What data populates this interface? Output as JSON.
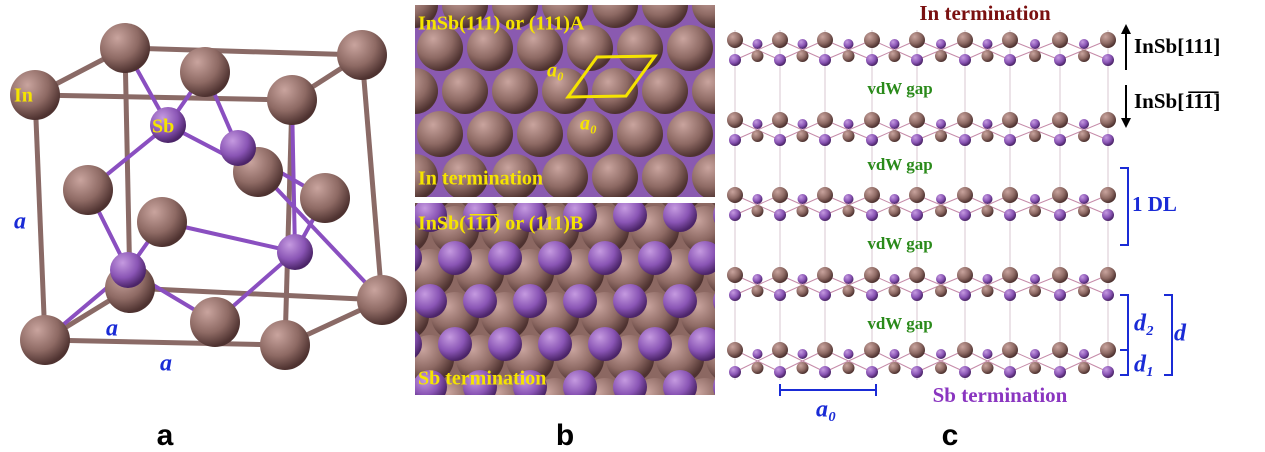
{
  "panel_a": {
    "label": "a",
    "atom_in": "In",
    "atom_sb": "Sb",
    "edge_labels": [
      "a",
      "a",
      "a"
    ]
  },
  "panel_b": {
    "label": "b",
    "top": {
      "title": "InSb(111) or (111)A",
      "lattice_labels": [
        "a₀",
        "a₀"
      ],
      "termination": "In termination"
    },
    "bottom": {
      "title": "InSb(1̅1̅1̅) or (111)B",
      "termination": "Sb termination"
    }
  },
  "panel_c": {
    "label": "c",
    "top_termination": "In termination",
    "bottom_termination": "Sb termination",
    "directions": [
      "InSb[111]",
      "InSb[1̅1̅1̅]"
    ],
    "gaps": [
      "vdW gap",
      "vdW gap",
      "vdW gap",
      "vdW gap"
    ],
    "layer": "1 DL",
    "spacings": [
      "d₂",
      "d₁",
      "d"
    ],
    "lattice": "a₀"
  }
}
